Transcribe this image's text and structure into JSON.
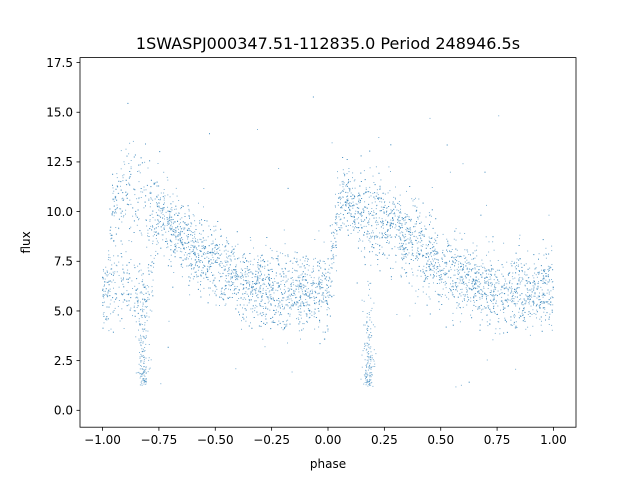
{
  "chart_data": {
    "type": "scatter",
    "title": "1SWASPJ000347.51-112835.0 Period 248946.5s",
    "xlabel": "phase",
    "ylabel": "flux",
    "xlim": [
      -1.1,
      1.1
    ],
    "ylim": [
      -0.85,
      17.75
    ],
    "xticks": [
      -1.0,
      -0.75,
      -0.5,
      -0.25,
      0.0,
      0.25,
      0.5,
      0.75,
      1.0
    ],
    "xtick_labels": [
      "−1.00",
      "−0.75",
      "−0.50",
      "−0.25",
      "0.00",
      "0.25",
      "0.50",
      "0.75",
      "1.00"
    ],
    "yticks": [
      0.0,
      2.5,
      5.0,
      7.5,
      10.0,
      12.5,
      15.0,
      17.5
    ],
    "ytick_labels": [
      "0.0",
      "2.5",
      "5.0",
      "7.5",
      "10.0",
      "12.5",
      "15.0",
      "17.5"
    ],
    "grid": false,
    "legend": "none",
    "marker_color": "#1f77b4",
    "series": [
      {
        "x": [
          -1.0,
          -0.95,
          -0.9,
          -0.85,
          -0.8,
          -0.75,
          -0.7,
          -0.65,
          -0.6,
          -0.55,
          -0.5,
          -0.45,
          -0.4,
          -0.35,
          -0.3,
          -0.25,
          -0.2,
          -0.15,
          -0.1,
          -0.05,
          0.0,
          0.05,
          0.1,
          0.15,
          0.2,
          0.25,
          0.3,
          0.35,
          0.4,
          0.45,
          0.5,
          0.55,
          0.6,
          0.65,
          0.7,
          0.75,
          0.8,
          0.85,
          0.9,
          0.95,
          1.0
        ],
        "y_main": [
          6.0,
          6.0,
          6.2,
          6.1,
          5.8,
          9.8,
          9.3,
          8.7,
          8.2,
          7.7,
          7.3,
          6.9,
          6.6,
          6.3,
          6.1,
          6.0,
          5.9,
          5.9,
          5.9,
          6.0,
          6.0,
          10.6,
          10.2,
          9.8,
          9.6,
          9.5,
          9.3,
          8.7,
          8.2,
          7.7,
          7.3,
          6.9,
          6.6,
          6.3,
          6.1,
          6.0,
          5.9,
          5.9,
          5.9,
          6.0,
          6.0
        ],
        "y_upper": [
          null,
          10.3,
          10.9,
          11.0,
          10.6,
          10.2,
          null,
          null,
          null,
          null,
          null,
          null,
          null,
          null,
          null,
          null,
          null,
          null,
          null,
          null,
          null,
          null,
          null,
          null,
          null,
          null,
          null,
          null,
          null,
          null,
          null,
          null,
          null,
          null,
          null,
          null,
          null,
          null,
          null,
          null,
          null
        ],
        "y_dip": [
          null,
          null,
          null,
          null,
          1.2,
          null,
          null,
          null,
          null,
          null,
          null,
          null,
          null,
          null,
          null,
          null,
          null,
          null,
          null,
          null,
          null,
          null,
          null,
          1.2,
          null,
          null,
          null,
          null,
          null,
          null,
          null,
          null,
          null,
          null,
          null,
          null,
          null,
          null,
          null,
          null,
          null
        ]
      }
    ]
  }
}
